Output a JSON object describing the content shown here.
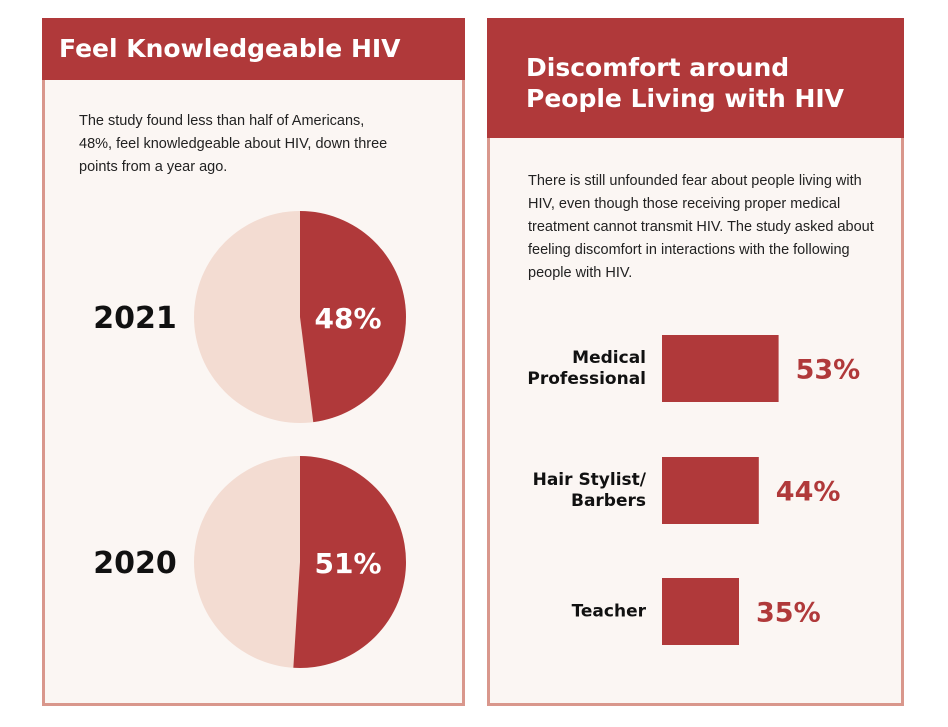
{
  "chart_data": [
    {
      "type": "pie",
      "title": "Feel Knowledgeable HIV",
      "subtitle": "The study found less than half of Americans, 48%, feel knowledgeable about HIV, down three points from a year ago.",
      "categories": [
        "2021",
        "2020"
      ],
      "values": [
        48,
        51
      ],
      "value_labels": [
        "48%",
        "51%"
      ],
      "color": "#b0393a",
      "background_color": "#f3dcd2"
    },
    {
      "type": "bar",
      "title": "Discomfort around People Living with HIV",
      "subtitle": "There is still unfounded fear about people living with HIV, even though those receiving proper medical treatment cannot transmit HIV. The study asked about feeling discomfort in interactions with the following people with HIV.",
      "categories": [
        "Medical Professional",
        "Hair Stylist/ Barbers",
        "Teacher"
      ],
      "values": [
        53,
        44,
        35
      ],
      "value_labels": [
        "53%",
        "44%",
        "35%"
      ],
      "color": "#b0393a"
    }
  ]
}
